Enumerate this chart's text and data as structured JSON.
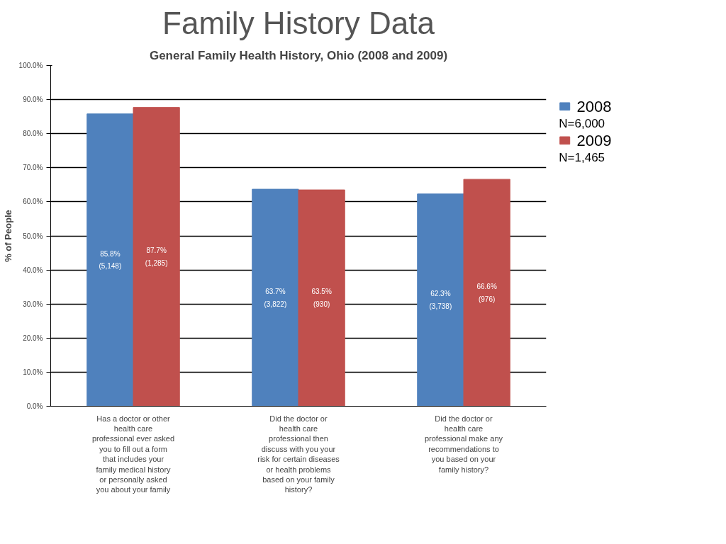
{
  "chart_data": {
    "type": "bar",
    "title": "Family History Data",
    "subtitle": "General Family Health History, Ohio (2008 and 2009)",
    "ylabel": "% of People",
    "categories": [
      "Has a doctor or other\nhealth care\nprofessional ever asked\nyou to fill out a form\nthat includes your\nfamily medical history\nor personally asked\nyou about your family",
      "Did the doctor or\nhealth care\nprofessional then\ndiscuss with you your\nrisk for certain diseases\nor health problems\nbased on your family\nhistory?",
      "Did the doctor or\nhealth care\nprofessional make any\nrecommendations to\nyou based on your\nfamily history?"
    ],
    "series": [
      {
        "name": "2008",
        "color": "#4f81bd",
        "values": [
          85.8,
          63.7,
          62.3
        ],
        "value_labels": [
          "85.8%\n(5,148)",
          "63.7%\n(3,822)",
          "62.3%\n(3,738)"
        ]
      },
      {
        "name": "2009",
        "color": "#c0504d",
        "values": [
          87.7,
          63.5,
          66.6
        ],
        "value_labels": [
          "87.7%\n(1,285)",
          "63.5%\n(930)",
          "66.6%\n(976)"
        ]
      }
    ],
    "annotations": [
      "N=6,000",
      "N=1,465"
    ],
    "ylim": [
      0,
      100
    ],
    "yticks": [
      {
        "value": 0,
        "label": "0.0%"
      },
      {
        "value": 10,
        "label": "10.0%"
      },
      {
        "value": 20,
        "label": "20.0%"
      },
      {
        "value": 30,
        "label": "30.0%"
      },
      {
        "value": 40,
        "label": "40.0%"
      },
      {
        "value": 50,
        "label": "50.0%"
      },
      {
        "value": 60,
        "label": "60.0%"
      },
      {
        "value": 70,
        "label": "70.0%"
      },
      {
        "value": 80,
        "label": "80.0%"
      },
      {
        "value": 90,
        "label": "90.0%"
      },
      {
        "value": 100,
        "label": "100.0%"
      }
    ],
    "grid": "y",
    "legend": "right"
  }
}
